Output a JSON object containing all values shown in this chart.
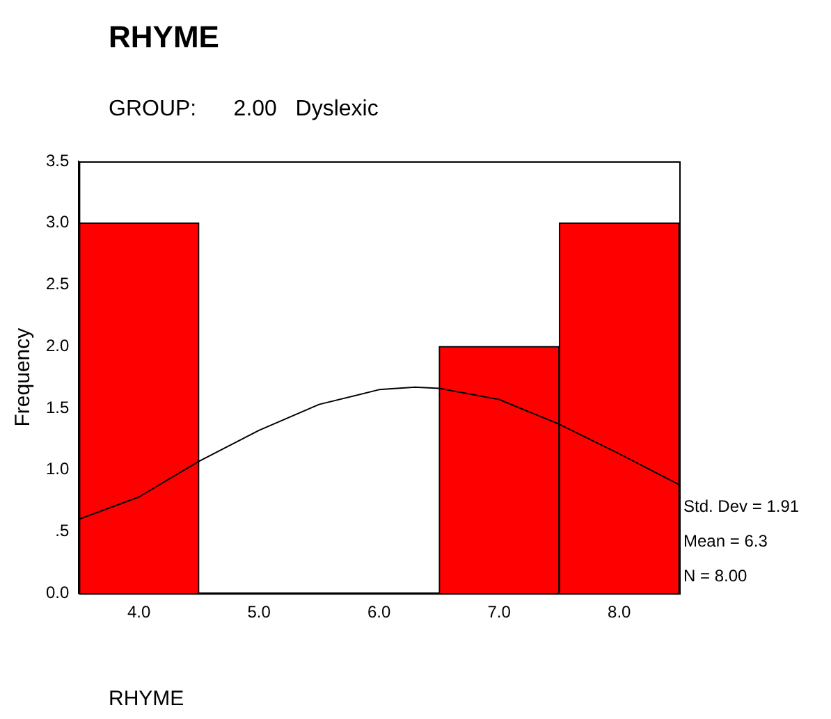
{
  "chart_data": {
    "type": "histogram",
    "title": "RHYME",
    "subtitle": "GROUP:      2.00   Dyslexic",
    "xlabel": "RHYME",
    "ylabel": "Frequency",
    "bins": [
      3.5,
      4.5,
      5.5,
      6.5,
      7.5,
      8.5
    ],
    "values": [
      3,
      0,
      0,
      2,
      3
    ],
    "color": "#ff0000",
    "series": [
      {
        "type": "line",
        "color": "#000000",
        "x": [
          3.5,
          4,
          4.5,
          5,
          5.5,
          6,
          6.3,
          6.5,
          7,
          7.5,
          8,
          8.5
        ],
        "values": [
          0.6,
          0.78,
          1.07,
          1.32,
          1.53,
          1.65,
          1.67,
          1.66,
          1.57,
          1.37,
          1.13,
          0.88
        ]
      }
    ],
    "xlim": [
      3.5,
      8.5
    ],
    "xticks": [
      {
        "value": 4,
        "label": "4.0"
      },
      {
        "value": 5,
        "label": "5.0"
      },
      {
        "value": 6,
        "label": "6.0"
      },
      {
        "value": 7,
        "label": "7.0"
      },
      {
        "value": 8,
        "label": "8.0"
      }
    ],
    "ylim": [
      0,
      3.5
    ],
    "yticks": [
      {
        "value": 0,
        "label": "0.0"
      },
      {
        "value": 0.5,
        "label": ".5"
      },
      {
        "value": 1,
        "label": "1.0"
      },
      {
        "value": 1.5,
        "label": "1.5"
      },
      {
        "value": 2,
        "label": "2.0"
      },
      {
        "value": 2.5,
        "label": "2.5"
      },
      {
        "value": 3,
        "label": "3.0"
      },
      {
        "value": 3.5,
        "label": "3.5"
      }
    ],
    "grid": false,
    "legend": false,
    "annotations": [
      "Std. Dev = 1.91",
      "Mean = 6.3",
      "N = 8.00"
    ]
  }
}
